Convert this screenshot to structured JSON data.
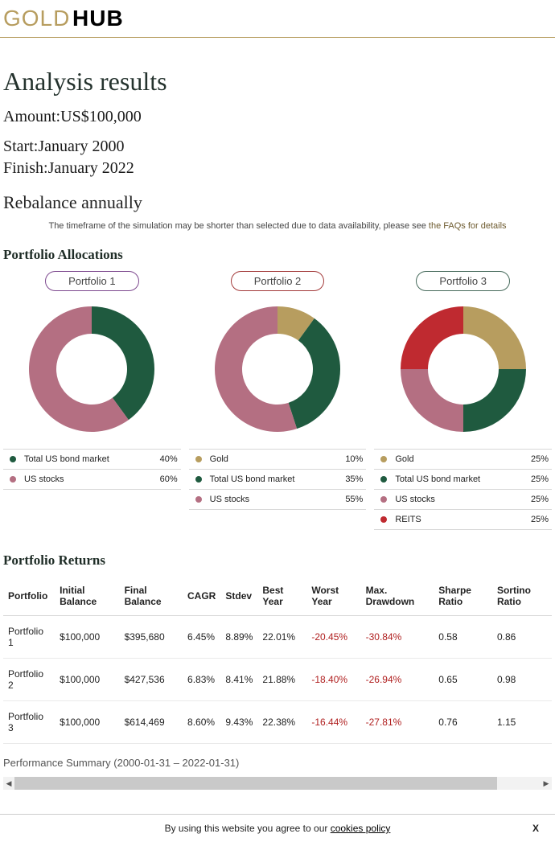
{
  "brand": {
    "gold": "GOLD",
    "hub": "HUB",
    "gold_color": "#b79d5f",
    "hub_color": "#000000"
  },
  "title": "Analysis results",
  "amount": {
    "label": "Amount:",
    "value": "US$100,000"
  },
  "start": {
    "label": "Start:",
    "value": "January 2000"
  },
  "finish": {
    "label": "Finish:",
    "value": "January 2022"
  },
  "rebalance": "Rebalance annually",
  "note": {
    "text": "The timeframe of the simulation may be shorter than selected due to data availability, please see ",
    "link": "the FAQs for details"
  },
  "alloc_heading": "Portfolio Allocations",
  "colors": {
    "green": "#1f5a3f",
    "mauve": "#b46f82",
    "gold": "#b79d5f",
    "red": "#bf2a30",
    "divider": "#d8d8d8"
  },
  "portfolios": [
    {
      "name": "Portfolio 1",
      "border": "#7e4a8f",
      "donut": {
        "size": 170,
        "r_outer": 78,
        "r_inner": 44
      },
      "segments": [
        {
          "label": "Total US bond market",
          "pct": 40,
          "color": "#1f5a3f"
        },
        {
          "label": "US stocks",
          "pct": 60,
          "color": "#b46f82"
        }
      ]
    },
    {
      "name": "Portfolio 2",
      "border": "#a33a3a",
      "donut": {
        "size": 170,
        "r_outer": 78,
        "r_inner": 44
      },
      "segments": [
        {
          "label": "Gold",
          "pct": 10,
          "color": "#b79d5f"
        },
        {
          "label": "Total US bond market",
          "pct": 35,
          "color": "#1f5a3f"
        },
        {
          "label": "US stocks",
          "pct": 55,
          "color": "#b46f82"
        }
      ]
    },
    {
      "name": "Portfolio 3",
      "border": "#476b5c",
      "donut": {
        "size": 170,
        "r_outer": 78,
        "r_inner": 44
      },
      "segments": [
        {
          "label": "Gold",
          "pct": 25,
          "color": "#b79d5f"
        },
        {
          "label": "Total US bond market",
          "pct": 25,
          "color": "#1f5a3f"
        },
        {
          "label": "US stocks",
          "pct": 25,
          "color": "#b46f82"
        },
        {
          "label": "REITS",
          "pct": 25,
          "color": "#bf2a30"
        }
      ]
    }
  ],
  "returns_heading": "Portfolio Returns",
  "returns": {
    "columns": [
      "Portfolio",
      "Initial Balance",
      "Final Balance",
      "CAGR",
      "Stdev",
      "Best Year",
      "Worst Year",
      "Max. Drawdown",
      "Sharpe Ratio",
      "Sortino Ratio"
    ],
    "rows": [
      {
        "cells": [
          "Portfolio 1",
          "$100,000",
          "$395,680",
          "6.45%",
          "8.89%",
          "22.01%",
          "-20.45%",
          "-30.84%",
          "0.58",
          "0.86"
        ],
        "neg": [
          6,
          7
        ]
      },
      {
        "cells": [
          "Portfolio 2",
          "$100,000",
          "$427,536",
          "6.83%",
          "8.41%",
          "21.88%",
          "-18.40%",
          "-26.94%",
          "0.65",
          "0.98"
        ],
        "neg": [
          6,
          7
        ]
      },
      {
        "cells": [
          "Portfolio 3",
          "$100,000",
          "$614,469",
          "8.60%",
          "9.43%",
          "22.38%",
          "-16.44%",
          "-27.81%",
          "0.76",
          "1.15"
        ],
        "neg": [
          6,
          7
        ]
      }
    ]
  },
  "perf_summary": "Performance Summary (2000-01-31 – 2022-01-31)",
  "scrollbar": {
    "track": "#f2f2f2",
    "thumb": "#c9c9c9",
    "thumb_width_pct": 88
  },
  "cookie": {
    "text": "By using this website you agree to our ",
    "link": "cookies policy",
    "close": "X"
  }
}
